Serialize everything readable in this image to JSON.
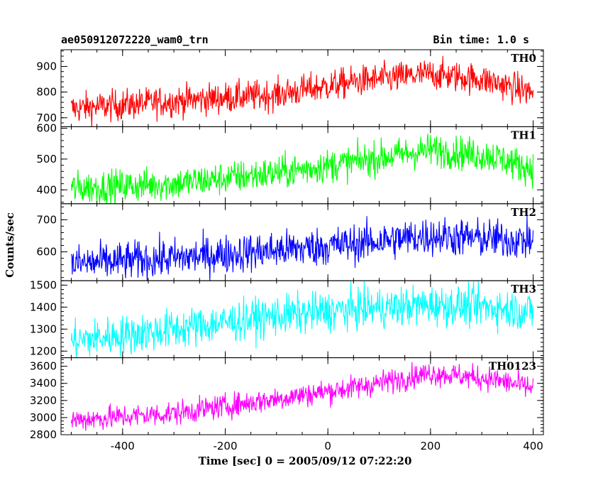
{
  "chart_data": {
    "type": "line",
    "title": "ae050912072220_wam0_trn",
    "bin_time_label": "Bin time: 1.0 s",
    "xlabel": "Time [sec] 0 = 2005/09/12 07:22:20",
    "ylabel": "Counts/sec",
    "xlim": [
      -520,
      420
    ],
    "xticks": [
      -400,
      -200,
      0,
      200,
      400
    ],
    "x_start": -500,
    "x_end": 400,
    "x_step": 1,
    "panels": [
      {
        "name": "TH0",
        "color": "#ff0000",
        "ylim": [
          665,
          965
        ],
        "yticks": [
          700,
          800,
          900
        ],
        "trend": [
          [
            -500,
            735
          ],
          [
            -300,
            765
          ],
          [
            -100,
            790
          ],
          [
            50,
            840
          ],
          [
            200,
            870
          ],
          [
            300,
            850
          ],
          [
            395,
            800
          ]
        ],
        "noise": 30
      },
      {
        "name": "TH1",
        "color": "#00ff00",
        "ylim": [
          355,
          605
        ],
        "yticks": [
          400,
          500,
          600
        ],
        "trend": [
          [
            -500,
            405
          ],
          [
            -300,
            420
          ],
          [
            -100,
            455
          ],
          [
            50,
            490
          ],
          [
            200,
            530
          ],
          [
            320,
            510
          ],
          [
            395,
            470
          ]
        ],
        "noise": 27
      },
      {
        "name": "TH2",
        "color": "#0000ff",
        "ylim": [
          510,
          750
        ],
        "yticks": [
          600,
          700
        ],
        "trend": [
          [
            -500,
            562
          ],
          [
            -300,
            580
          ],
          [
            -100,
            605
          ],
          [
            50,
            625
          ],
          [
            200,
            650
          ],
          [
            320,
            640
          ],
          [
            395,
            635
          ]
        ],
        "noise": 30
      },
      {
        "name": "TH3",
        "color": "#00ffff",
        "ylim": [
          1170,
          1520
        ],
        "yticks": [
          1200,
          1300,
          1400,
          1500
        ],
        "trend": [
          [
            -500,
            1245
          ],
          [
            -300,
            1300
          ],
          [
            -100,
            1360
          ],
          [
            50,
            1390
          ],
          [
            200,
            1410
          ],
          [
            320,
            1400
          ],
          [
            395,
            1380
          ]
        ],
        "noise": 45
      },
      {
        "name": "TH0123",
        "color": "#ff00ff",
        "ylim": [
          2800,
          3700
        ],
        "yticks": [
          2800,
          3000,
          3200,
          3400,
          3600
        ],
        "trend": [
          [
            -500,
            2970
          ],
          [
            -300,
            3050
          ],
          [
            -100,
            3220
          ],
          [
            50,
            3350
          ],
          [
            200,
            3520
          ],
          [
            320,
            3450
          ],
          [
            395,
            3350
          ]
        ],
        "noise": 70
      }
    ]
  }
}
